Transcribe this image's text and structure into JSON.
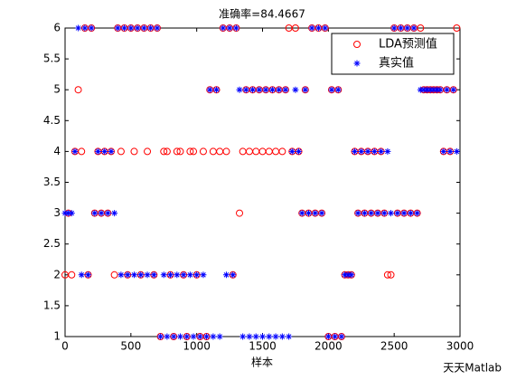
{
  "chart_data": {
    "type": "scatter",
    "title": "准确率=84.4667",
    "xlabel": "样本",
    "watermark": "天天Matlab",
    "xlim": [
      0,
      3000
    ],
    "xticks": [
      0,
      500,
      1000,
      1500,
      2000,
      2500,
      3000
    ],
    "ylim": [
      1,
      6
    ],
    "yticks": [
      1,
      1.5,
      2,
      2.5,
      3,
      3.5,
      4,
      4.5,
      5,
      5.5,
      6
    ],
    "legend": "top-right",
    "x": [
      0,
      25,
      50,
      75,
      100,
      125,
      150,
      175,
      200,
      225,
      250,
      275,
      300,
      325,
      350,
      375,
      400,
      425,
      450,
      475,
      500,
      525,
      550,
      575,
      600,
      625,
      650,
      675,
      700,
      725,
      750,
      775,
      800,
      825,
      850,
      875,
      900,
      925,
      950,
      975,
      1000,
      1025,
      1050,
      1075,
      1100,
      1125,
      1150,
      1175,
      1200,
      1225,
      1250,
      1275,
      1300,
      1325,
      1350,
      1375,
      1400,
      1425,
      1450,
      1475,
      1500,
      1525,
      1550,
      1575,
      1600,
      1625,
      1650,
      1675,
      1700,
      1725,
      1750,
      1775,
      1800,
      1825,
      1850,
      1875,
      1900,
      1925,
      1950,
      1975,
      2000,
      2025,
      2050,
      2075,
      2100,
      2125,
      2150,
      2175,
      2200,
      2225,
      2250,
      2275,
      2300,
      2325,
      2350,
      2375,
      2400,
      2425,
      2450,
      2475,
      2500,
      2525,
      2550,
      2575,
      2600,
      2625,
      2650,
      2675,
      2700,
      2725,
      2750,
      2775,
      2800,
      2825,
      2850,
      2875,
      2900,
      2925,
      2950,
      2975
    ],
    "series": [
      {
        "name": "LDA预测值",
        "color": "#ff0000",
        "marker": "circle",
        "values": [
          2,
          3,
          2,
          4,
          5,
          4,
          6,
          2,
          6,
          3,
          4,
          3,
          4,
          3,
          4,
          2,
          6,
          4,
          6,
          2,
          6,
          4,
          6,
          2,
          6,
          4,
          6,
          2,
          6,
          1,
          4,
          4,
          2,
          1,
          4,
          4,
          2,
          1,
          4,
          4,
          2,
          1,
          4,
          1,
          5,
          4,
          5,
          4,
          6,
          4,
          6,
          2,
          6,
          3,
          4,
          5,
          4,
          5,
          4,
          5,
          4,
          5,
          4,
          5,
          4,
          5,
          4,
          5,
          6,
          4,
          6,
          4,
          3,
          5,
          3,
          6,
          3,
          6,
          3,
          6,
          1,
          5,
          1,
          5,
          1,
          2,
          2,
          2,
          4,
          3,
          4,
          3,
          4,
          3,
          4,
          3,
          4,
          3,
          2,
          2,
          6,
          3,
          6,
          3,
          6,
          3,
          6,
          3,
          6,
          5,
          5,
          5,
          5,
          5,
          5,
          4,
          5,
          4,
          5,
          6
        ]
      },
      {
        "name": "真实值",
        "color": "#0000ff",
        "marker": "asterisk",
        "values": [
          3,
          3,
          3,
          4,
          6,
          2,
          6,
          2,
          6,
          3,
          4,
          3,
          4,
          3,
          4,
          3,
          6,
          2,
          6,
          2,
          6,
          2,
          6,
          2,
          6,
          2,
          6,
          2,
          6,
          1,
          2,
          1,
          2,
          1,
          2,
          1,
          2,
          1,
          2,
          1,
          2,
          1,
          2,
          1,
          5,
          1,
          5,
          1,
          6,
          2,
          6,
          2,
          6,
          5,
          1,
          5,
          1,
          5,
          1,
          5,
          1,
          5,
          1,
          5,
          1,
          5,
          1,
          5,
          1,
          4,
          5,
          4,
          3,
          5,
          3,
          6,
          3,
          6,
          3,
          6,
          1,
          5,
          1,
          5,
          1,
          2,
          2,
          2,
          4,
          3,
          4,
          3,
          4,
          3,
          4,
          3,
          4,
          3,
          4,
          3,
          6,
          3,
          6,
          3,
          6,
          3,
          6,
          3,
          5,
          5,
          5,
          5,
          5,
          5,
          5,
          4,
          5,
          4,
          5,
          4
        ]
      }
    ]
  }
}
